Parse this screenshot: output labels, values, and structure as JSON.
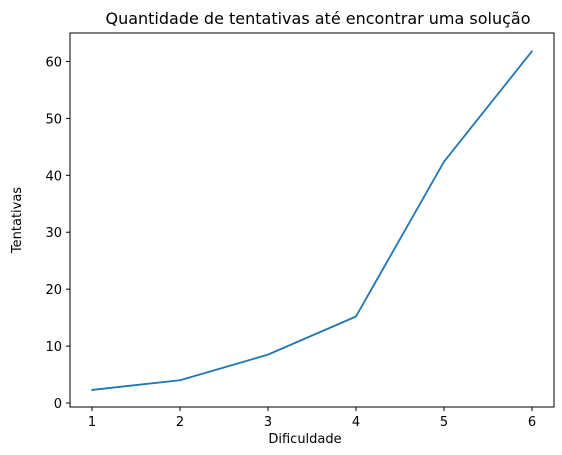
{
  "chart_data": {
    "type": "line",
    "title": "Quantidade de tentativas até encontrar uma solução",
    "xlabel": "Dificuldade",
    "ylabel": "Tentativas",
    "x": [
      1,
      2,
      3,
      4,
      5,
      6
    ],
    "series": [
      {
        "values": [
          2.3,
          4.0,
          8.5,
          15.2,
          42.4,
          61.8
        ],
        "color": "#1f77b4"
      }
    ],
    "xlim": [
      0.75,
      6.25
    ],
    "ylim": [
      -0.7,
      65.0
    ],
    "xticks": [
      1,
      2,
      3,
      4,
      5,
      6
    ],
    "yticks": [
      0,
      10,
      20,
      30,
      40,
      50,
      60
    ],
    "grid": false,
    "legend": "none"
  }
}
